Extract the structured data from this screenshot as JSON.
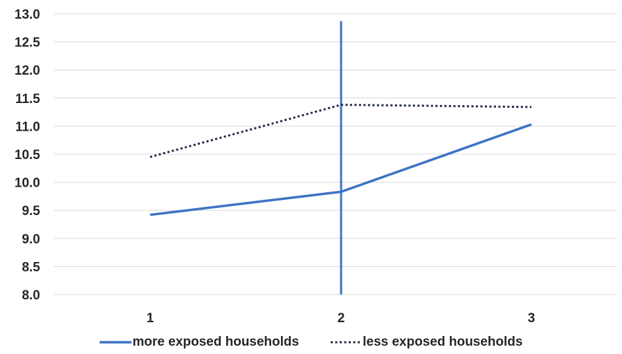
{
  "chart_data": {
    "type": "line",
    "title": "",
    "xlabel": "",
    "ylabel": "",
    "categories": [
      "1",
      "2",
      "3"
    ],
    "ylim": [
      8.0,
      13.0
    ],
    "y_ticks": [
      "8.0",
      "8.5",
      "9.0",
      "9.5",
      "10.0",
      "10.5",
      "11.0",
      "11.5",
      "12.0",
      "12.5",
      "13.0"
    ],
    "grid": "horizontal",
    "legend_position": "bottom",
    "series": [
      {
        "name": "more exposed households",
        "values": [
          9.42,
          9.83,
          11.03
        ],
        "color": "#3e73c4",
        "style": "solid"
      },
      {
        "name": "less exposed households",
        "values": [
          10.45,
          11.38,
          11.34
        ],
        "color": "#1f2a44",
        "style": "dotted"
      }
    ],
    "reference_line": {
      "x": "2",
      "y_from": 8.0,
      "y_to": 12.87,
      "color": "#3e73c4"
    }
  }
}
